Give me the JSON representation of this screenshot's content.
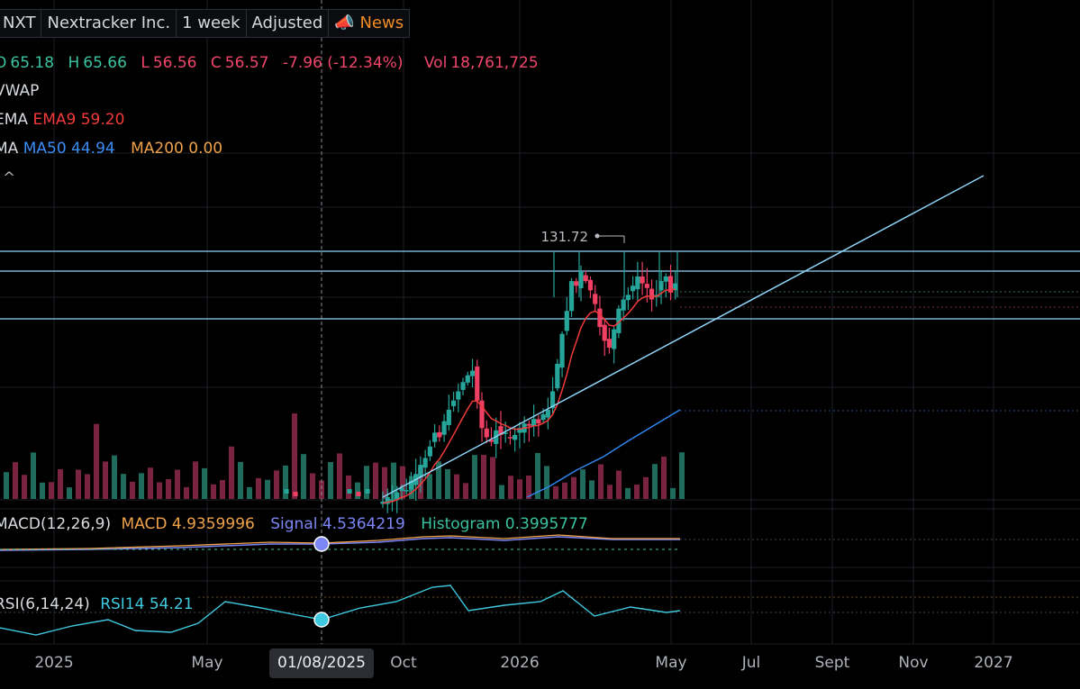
{
  "header": {
    "ticker": "NXT",
    "company": "Nextracker Inc.",
    "interval": "1 week",
    "adjustment": "Adjusted",
    "news_label": "News"
  },
  "ohlc": {
    "o_label": "O",
    "o": "65.18",
    "h_label": "H",
    "h": "65.66",
    "l_label": "L",
    "l": "56.56",
    "c_label": "C",
    "c": "56.57",
    "change": "-7.96 (-12.34%)",
    "vol_label": "Vol",
    "vol": "18,761,725"
  },
  "indicators": {
    "vwap": "VWAP",
    "ema_name": "EMA",
    "ema9": "EMA9 59.20",
    "ma_name": "MA",
    "ma50": "MA50 44.94",
    "ma200": "MA200 0.00",
    "collapse_glyph": "^",
    "macd_name": "MACD(12,26,9)",
    "macd": "MACD 4.9359996",
    "signal": "Signal 4.5364219",
    "histogram": "Histogram 0.3995777",
    "rsi_name": "RSI(6,14,24)",
    "rsi14": "RSI14 54.21"
  },
  "crosshair_date": "01/08/2025",
  "colors": {
    "up": "#26a69a",
    "down": "#ef3f63",
    "ema9": "#f23a3a",
    "ma50": "#2f86f0",
    "trend": "#8fd3f7",
    "background": "#000000",
    "grid": "#1d2026",
    "macd": "#f0a24a",
    "signal": "#7d86f5",
    "rsi": "#3ec9df"
  },
  "chart_data": {
    "type": "candlestick",
    "high_marker": "131.72",
    "x_tick_labels": [
      "2025",
      "May",
      "Oct",
      "2026",
      "May",
      "Jul",
      "Sept",
      "Nov",
      "2027"
    ]
  }
}
